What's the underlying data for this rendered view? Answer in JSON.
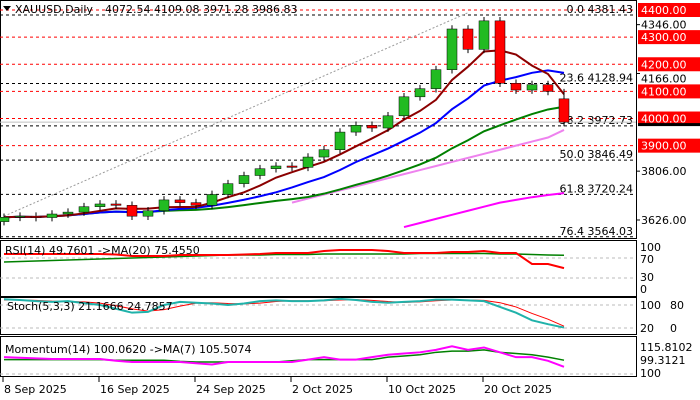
{
  "header": {
    "symbol": "XAUUSD,Daily",
    "ohlc": "4072.54 4109.08 3971.28 3986.83"
  },
  "colors": {
    "bull": "#22bb22",
    "bear": "#ff0000",
    "ma_short": "#8b0000",
    "ma_mid": "#0000ff",
    "ma_long": "#008000",
    "ma_pink": "#ee82ee",
    "ma_magenta": "#ff00ff",
    "rsi": "#ff0000",
    "stoch": "#20b2aa",
    "momentum": "#ff00ff"
  },
  "chart_data": {
    "type": "candlestick",
    "symbol": "XAUUSD",
    "timeframe": "Daily",
    "x_ticks": [
      {
        "label": "8 Sep 2025",
        "index": 0
      },
      {
        "label": "16 Sep 2025",
        "index": 6
      },
      {
        "label": "24 Sep 2025",
        "index": 12
      },
      {
        "label": "2 Oct 2025",
        "index": 18
      },
      {
        "label": "10 Oct 2025",
        "index": 24
      },
      {
        "label": "20 Oct 2025",
        "index": 30
      }
    ],
    "close": [
      3636,
      3640,
      3635,
      3648,
      3655,
      3675,
      3685,
      3680,
      3640,
      3660,
      3700,
      3690,
      3680,
      3720,
      3760,
      3790,
      3815,
      3825,
      3820,
      3858,
      3885,
      3950,
      3975,
      3965,
      4010,
      4080,
      4110,
      4180,
      4330,
      4255,
      4360,
      4130,
      4105,
      4125,
      4100,
      3986.83
    ],
    "open_first": 3620,
    "last_open": 4072.54,
    "last_high": 4109.08,
    "last_low": 3971.28,
    "ylim": [
      3560,
      4420
    ],
    "y_ticks": [
      "4346.00",
      "4166.00",
      "3806.00",
      "3626.00"
    ],
    "red_levels": [
      {
        "value": 4400,
        "label": "4400.00"
      },
      {
        "value": 4300,
        "label": "4300.00"
      },
      {
        "value": 4200,
        "label": "4200.00"
      },
      {
        "value": 4100,
        "label": "4100.00"
      },
      {
        "value": 4000,
        "label": "4000.00"
      },
      {
        "value": 3900,
        "label": "3900.00"
      }
    ],
    "fibonacci": [
      {
        "label": "0.0 4381.43",
        "value": 4381.43
      },
      {
        "label": "23.6 4128.94",
        "value": 4128.94
      },
      {
        "label": "38.2 3972.73",
        "value": 3972.73
      },
      {
        "label": "50.0 3846.49",
        "value": 3846.49
      },
      {
        "label": "61.8 3720.24",
        "value": 3720.24
      },
      {
        "label": "76.4 3564.03",
        "value": 3564.03
      }
    ],
    "ma_periods": {
      "short": 5,
      "mid": 10,
      "long": 20
    },
    "ma_pink": {
      "start_index": 18,
      "values": [
        3690,
        3705,
        3720,
        3735,
        3750,
        3765,
        3780,
        3795,
        3810,
        3825,
        3840,
        3855,
        3870,
        3885,
        3900,
        3915,
        3930,
        3958
      ]
    },
    "ma_magenta": {
      "start_index": 25,
      "values": [
        3600,
        3615,
        3630,
        3645,
        3660,
        3675,
        3690,
        3700,
        3710,
        3718,
        3725
      ]
    },
    "trendline": {
      "from": {
        "index": 0,
        "value": 3640
      },
      "to": {
        "index": 29,
        "value": 4390
      }
    },
    "rsi": {
      "label": "RSI(14) 49.7601 ->MA(20) 75.4550",
      "levels": [
        "100",
        "70",
        "30",
        "0"
      ],
      "values": [
        78,
        78,
        78,
        78,
        78,
        78,
        78,
        77,
        74,
        74,
        74,
        76,
        76,
        76,
        76,
        77,
        78,
        80,
        80,
        80,
        84,
        86,
        86,
        86,
        84,
        80,
        80,
        80,
        82,
        82,
        84,
        80,
        80,
        58,
        58,
        49.76
      ],
      "ma": [
        62,
        63,
        64,
        65,
        66,
        67,
        68,
        69,
        70,
        71,
        72,
        73,
        74,
        75,
        76,
        76,
        76,
        77,
        77,
        77,
        78,
        78,
        78,
        78,
        78,
        78,
        79,
        79,
        79,
        79,
        79,
        78,
        78,
        77,
        76,
        75.455
      ]
    },
    "stoch": {
      "label": "Stoch(5,3,3) 21.1666 24.7857",
      "levels": [
        "100",
        "80",
        "20",
        "0"
      ],
      "k": [
        95,
        93,
        90,
        88,
        90,
        85,
        80,
        70,
        60,
        62,
        80,
        88,
        86,
        84,
        80,
        84,
        90,
        92,
        90,
        90,
        92,
        96,
        93,
        88,
        86,
        88,
        90,
        94,
        94,
        92,
        90,
        75,
        60,
        40,
        30,
        21.1666
      ],
      "d": [
        93,
        93,
        92,
        90,
        89,
        88,
        85,
        78,
        70,
        64,
        68,
        77,
        85,
        86,
        84,
        83,
        85,
        89,
        91,
        91,
        91,
        93,
        94,
        92,
        89,
        87,
        88,
        91,
        93,
        93,
        92,
        86,
        75,
        58,
        43,
        24.7857
      ]
    },
    "momentum": {
      "label": "Momentum(14) 100.0620  ->MA(7) 105.5074",
      "levels": [
        "115.8102",
        "99.3121",
        "100"
      ],
      "values": [
        108,
        107.5,
        107,
        106.5,
        106.5,
        106.5,
        106.5,
        105,
        104,
        104,
        104,
        104,
        103,
        102,
        104,
        104,
        104,
        104,
        104,
        106,
        108,
        106,
        106,
        108,
        110,
        111,
        112,
        114,
        117,
        114,
        116,
        112,
        108,
        108,
        105,
        100.062
      ],
      "ma": [
        106,
        106,
        106,
        106,
        106,
        106,
        106,
        105.5,
        105.5,
        105.5,
        105.5,
        104.5,
        104,
        104,
        104,
        104,
        104,
        104,
        105,
        106,
        106,
        106,
        106,
        106,
        108,
        109,
        110,
        112,
        113,
        113,
        114,
        112,
        111,
        110,
        108,
        105.5074
      ]
    }
  }
}
